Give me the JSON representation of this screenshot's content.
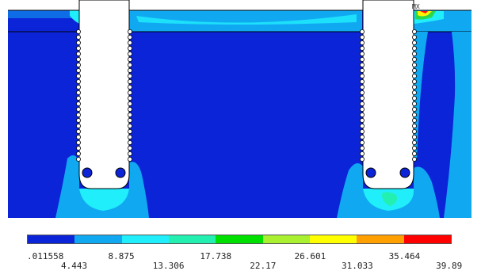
{
  "viewport": {
    "marker_label": "MX",
    "colors": {
      "blue": "#0b24d8",
      "light_blue": "#11a8f2",
      "cyan": "#20eefb",
      "teal": "#23f0b0",
      "green": "#2bd84a",
      "yellow_green": "#a8f030",
      "yellow": "#fff200",
      "orange": "#ffa000",
      "red": "#ff1010",
      "void": "#ffffff"
    }
  },
  "legend": {
    "colors": [
      "#0b24d8",
      "#11a8f2",
      "#20eefb",
      "#23f0b0",
      "#00e000",
      "#a8f030",
      "#ffff00",
      "#ffa000",
      "#ff0000"
    ],
    "labels_top": [
      ".011558",
      "8.875",
      "17.738",
      "26.601",
      "35.464"
    ],
    "labels_bottom": [
      "4.443",
      "13.306",
      "22.17",
      "31.033",
      "39.89"
    ]
  }
}
